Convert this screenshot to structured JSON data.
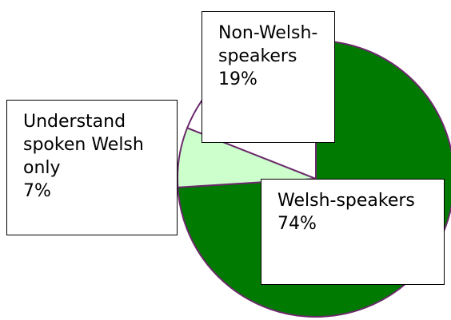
{
  "chart_data": {
    "type": "pie",
    "categories": [
      "Welsh-speakers",
      "Understand spoken Welsh only",
      "Non-Welsh-speakers"
    ],
    "values": [
      74,
      7,
      19
    ],
    "value_labels": [
      "74%",
      "7%",
      "19%"
    ],
    "colors": [
      "#007a00",
      "#ccffcc",
      "#ffffff"
    ]
  }
}
